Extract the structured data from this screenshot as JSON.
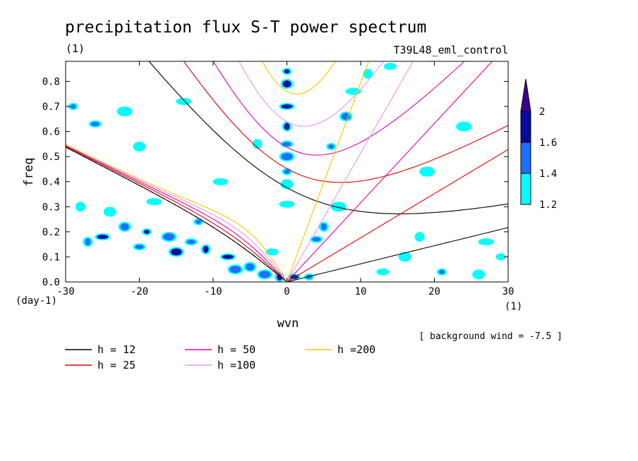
{
  "title": "precipitation flux S-T power spectrum",
  "subtitle_left": "(1)",
  "subtitle_right": "T39L48_eml_control",
  "background_wind": "[ background wind = -7.5 ]",
  "chart_data": {
    "type": "heatmap",
    "title": "precipitation flux S-T power spectrum",
    "xlabel": "wvn",
    "ylabel": "freq",
    "x_unit": "(1)",
    "y_unit": "(day-1)",
    "xlim": [
      -30,
      30
    ],
    "ylim": [
      0,
      0.88
    ],
    "x_ticks": [
      "-30",
      "-20",
      "-10",
      "0",
      "10",
      "20",
      "30"
    ],
    "y_ticks": [
      "0.0",
      "0.1",
      "0.2",
      "0.3",
      "0.4",
      "0.5",
      "0.6",
      "0.7",
      "0.8"
    ],
    "colorbar": {
      "levels": [
        "1.2",
        "1.4",
        "1.6",
        "2"
      ],
      "colors": [
        "#00ffff",
        "#1e6eff",
        "#0a0aa0",
        "#3c0096"
      ]
    },
    "contour_regions": [
      {
        "x": 0,
        "y": 0.84,
        "level": 3
      },
      {
        "x": 0,
        "y": 0.79,
        "level": 3
      },
      {
        "x": 0,
        "y": 0.7,
        "level": 3
      },
      {
        "x": 0,
        "y": 0.62,
        "level": 3
      },
      {
        "x": 0,
        "y": 0.55,
        "level": 2
      },
      {
        "x": 0,
        "y": 0.5,
        "level": 2
      },
      {
        "x": 0,
        "y": 0.44,
        "level": 2
      },
      {
        "x": 0,
        "y": 0.39,
        "level": 1
      },
      {
        "x": 0,
        "y": 0.31,
        "level": 1
      },
      {
        "x": -1,
        "y": 0.02,
        "level": 3
      },
      {
        "x": 1,
        "y": 0.02,
        "level": 3
      },
      {
        "x": -3,
        "y": 0.03,
        "level": 2
      },
      {
        "x": 3,
        "y": 0.02,
        "level": 2
      },
      {
        "x": -5,
        "y": 0.06,
        "level": 2
      },
      {
        "x": -8,
        "y": 0.1,
        "level": 3
      },
      {
        "x": -11,
        "y": 0.13,
        "level": 3
      },
      {
        "x": -13,
        "y": 0.16,
        "level": 2
      },
      {
        "x": -16,
        "y": 0.18,
        "level": 2
      },
      {
        "x": -19,
        "y": 0.2,
        "level": 3
      },
      {
        "x": -22,
        "y": 0.22,
        "level": 2
      },
      {
        "x": -25,
        "y": 0.18,
        "level": 3
      },
      {
        "x": -27,
        "y": 0.16,
        "level": 2
      },
      {
        "x": -20,
        "y": 0.14,
        "level": 2
      },
      {
        "x": -15,
        "y": 0.12,
        "level": 3
      },
      {
        "x": -12,
        "y": 0.24,
        "level": 2
      },
      {
        "x": -24,
        "y": 0.28,
        "level": 1
      },
      {
        "x": -18,
        "y": 0.32,
        "level": 1
      },
      {
        "x": -28,
        "y": 0.3,
        "level": 1
      },
      {
        "x": -26,
        "y": 0.63,
        "level": 2
      },
      {
        "x": -22,
        "y": 0.68,
        "level": 1
      },
      {
        "x": -29,
        "y": 0.7,
        "level": 2
      },
      {
        "x": -20,
        "y": 0.54,
        "level": 1
      },
      {
        "x": -14,
        "y": 0.72,
        "level": 1
      },
      {
        "x": 5,
        "y": 0.22,
        "level": 2
      },
      {
        "x": 4,
        "y": 0.17,
        "level": 2
      },
      {
        "x": 7,
        "y": 0.3,
        "level": 1
      },
      {
        "x": 6,
        "y": 0.54,
        "level": 2
      },
      {
        "x": 8,
        "y": 0.66,
        "level": 2
      },
      {
        "x": 9,
        "y": 0.76,
        "level": 1
      },
      {
        "x": 11,
        "y": 0.83,
        "level": 1
      },
      {
        "x": 14,
        "y": 0.86,
        "level": 1
      },
      {
        "x": 19,
        "y": 0.44,
        "level": 1
      },
      {
        "x": 21,
        "y": 0.04,
        "level": 2
      },
      {
        "x": 26,
        "y": 0.03,
        "level": 1
      },
      {
        "x": 27,
        "y": 0.16,
        "level": 1
      },
      {
        "x": 18,
        "y": 0.18,
        "level": 1
      },
      {
        "x": 13,
        "y": 0.04,
        "level": 1
      },
      {
        "x": 24,
        "y": 0.62,
        "level": 1
      },
      {
        "x": 29,
        "y": 0.1,
        "level": 1
      },
      {
        "x": 16,
        "y": 0.1,
        "level": 1
      },
      {
        "x": -9,
        "y": 0.4,
        "level": 1
      },
      {
        "x": -4,
        "y": 0.55,
        "level": 1
      },
      {
        "x": -2,
        "y": 0.12,
        "level": 1
      },
      {
        "x": -7,
        "y": 0.05,
        "level": 2
      }
    ],
    "series": [
      {
        "name": "h = 12",
        "color": "#000000",
        "equivalent_depth": 12
      },
      {
        "name": "h = 25",
        "color": "#e00000",
        "equivalent_depth": 25
      },
      {
        "name": "h = 50",
        "color": "#e000b4",
        "equivalent_depth": 50
      },
      {
        "name": "h =100",
        "color": "#e896e8",
        "equivalent_depth": 100
      },
      {
        "name": "h =200",
        "color": "#f0c800",
        "equivalent_depth": 200
      }
    ],
    "background_wind": -7.5
  }
}
